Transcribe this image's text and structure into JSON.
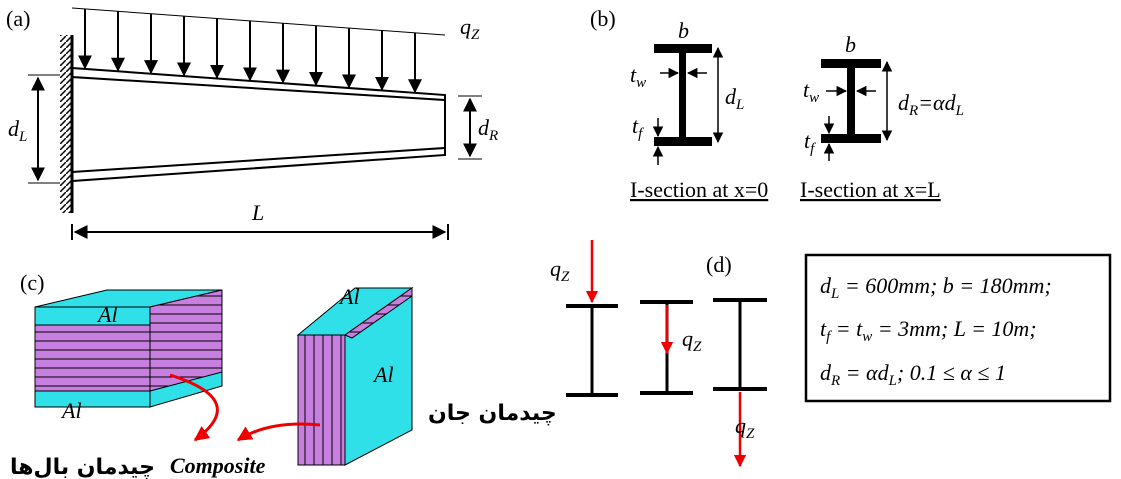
{
  "panel_a": {
    "label": "(a)",
    "load": [
      {
        "text": "q"
      },
      {
        "text": "Z",
        "sub": true
      }
    ],
    "depth_left": [
      {
        "text": "d"
      },
      {
        "text": "L",
        "sub": true
      }
    ],
    "depth_right": [
      {
        "text": "d"
      },
      {
        "text": "R",
        "sub": true
      }
    ],
    "length": "L"
  },
  "panel_b": {
    "label": "(b)",
    "left": {
      "width": "b",
      "web": [
        {
          "text": "t"
        },
        {
          "text": "w",
          "sub": true
        }
      ],
      "depth": [
        {
          "text": "d"
        },
        {
          "text": "L",
          "sub": true
        }
      ],
      "flange": [
        {
          "text": "t"
        },
        {
          "text": "f",
          "sub": true
        }
      ],
      "caption": "I-section at x=0"
    },
    "right": {
      "width": "b",
      "web": [
        {
          "text": "t"
        },
        {
          "text": "w",
          "sub": true
        }
      ],
      "depth": [
        {
          "text": "d"
        },
        {
          "text": "R",
          "sub": true
        },
        {
          "text": "=αd"
        },
        {
          "text": "L",
          "sub": true
        }
      ],
      "flange": [
        {
          "text": "t"
        },
        {
          "text": "f",
          "sub": true
        }
      ],
      "caption": "I-section at x=L"
    }
  },
  "panel_c": {
    "label": "(c)",
    "flange_top": "Al",
    "flange_bottom": "Al",
    "web_top": "Al",
    "web_side": "Al",
    "composite": "Composite",
    "flange_layup": "چیدمان بال‌ها",
    "web_layup": "چیدمان جان"
  },
  "panel_d": {
    "label": "(d)",
    "loads": [
      [
        {
          "text": "q"
        },
        {
          "text": "Z",
          "sub": true
        }
      ],
      [
        {
          "text": "q"
        },
        {
          "text": "Z",
          "sub": true
        }
      ],
      [
        {
          "text": "q"
        },
        {
          "text": "Z",
          "sub": true
        }
      ]
    ]
  },
  "parameters": [
    [
      {
        "text": "d"
      },
      {
        "text": "L",
        "sub": true
      },
      {
        "text": " = 600mm; b = 180mm;"
      }
    ],
    [
      {
        "text": "t"
      },
      {
        "text": "f",
        "sub": true
      },
      {
        "text": " = t"
      },
      {
        "text": "w",
        "sub": true
      },
      {
        "text": " = 3mm; L = 10m;"
      }
    ],
    [
      {
        "text": "d"
      },
      {
        "text": "R",
        "sub": true
      },
      {
        "text": " = αd"
      },
      {
        "text": "L",
        "sub": true
      },
      {
        "text": "; 0.1 ≤ α ≤ 1"
      }
    ]
  ]
}
